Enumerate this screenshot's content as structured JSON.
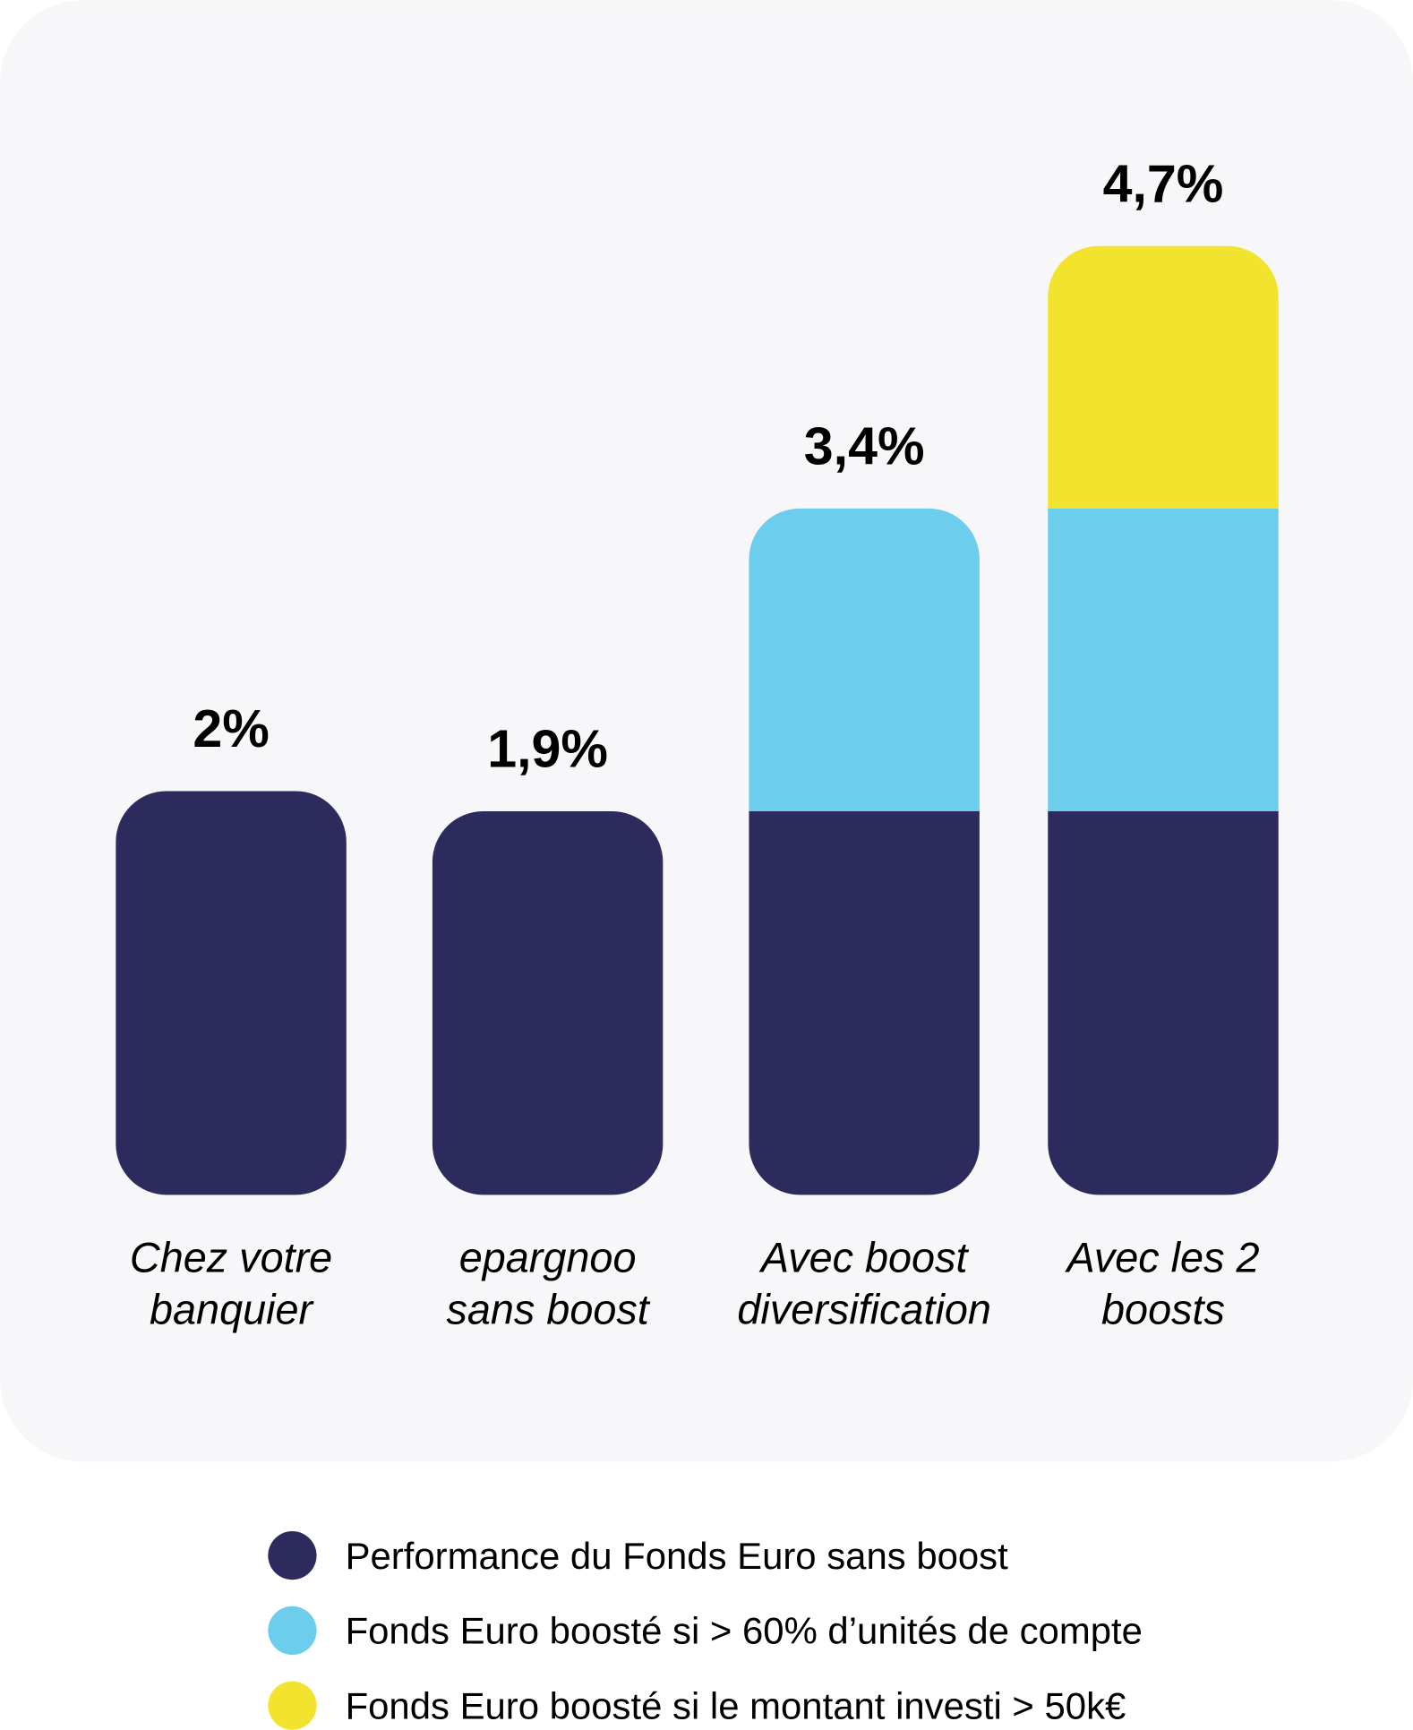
{
  "chart_data": {
    "type": "bar",
    "stacked": true,
    "title": "",
    "xlabel": "",
    "ylabel": "",
    "ylim": [
      0,
      5
    ],
    "grid": false,
    "legend_position": "bottom",
    "categories": [
      [
        "Chez votre",
        "banquier"
      ],
      [
        "epargnoo",
        "sans boost"
      ],
      [
        "Avec boost",
        "diversification"
      ],
      [
        "Avec les 2",
        "boosts"
      ]
    ],
    "totals_labels": [
      "2%",
      "1,9%",
      "3,4%",
      "4,7%"
    ],
    "series": [
      {
        "name": "Performance du Fonds Euro sans boost",
        "color": "#2d2b5d",
        "values": [
          2.0,
          1.9,
          1.9,
          1.9
        ]
      },
      {
        "name": "Fonds Euro boosté si > 60% d’unités de compte",
        "color": "#6ccdec",
        "values": [
          0,
          0,
          1.5,
          1.5
        ]
      },
      {
        "name": "Fonds Euro boosté si le montant investi > 50k€",
        "color": "#f2e32e",
        "values": [
          0,
          0,
          0,
          1.3
        ]
      }
    ]
  },
  "colors": {
    "card_background": "#f7f7f9"
  }
}
